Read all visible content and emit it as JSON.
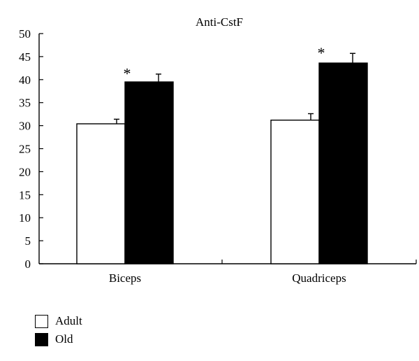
{
  "chart_data": {
    "type": "bar",
    "title": "Anti-CstF",
    "xlabel": "",
    "ylabel": "",
    "categories": [
      "Biceps",
      "Quadriceps"
    ],
    "ylim": [
      0,
      50
    ],
    "yticks": [
      0,
      5,
      10,
      15,
      20,
      25,
      30,
      35,
      40,
      45,
      50
    ],
    "ytick_labels": [
      "0",
      "5",
      "10",
      "15",
      "20",
      "25",
      "30",
      "35",
      "40",
      "45",
      "50"
    ],
    "grid": false,
    "legend_position": "bottom-left",
    "series": [
      {
        "name": "Adult",
        "values": [
          30.4,
          31.2
        ],
        "errors": [
          1.0,
          1.4
        ],
        "color": "#ffffff"
      },
      {
        "name": "Old",
        "values": [
          39.5,
          43.6
        ],
        "errors": [
          1.7,
          2.1
        ],
        "color": "#000000"
      }
    ],
    "annotations": [
      {
        "text": "*",
        "category": "Biceps",
        "series": "Old",
        "y": 42.0
      },
      {
        "text": "*",
        "category": "Quadriceps",
        "series": "Old",
        "y": 46.5
      }
    ]
  }
}
